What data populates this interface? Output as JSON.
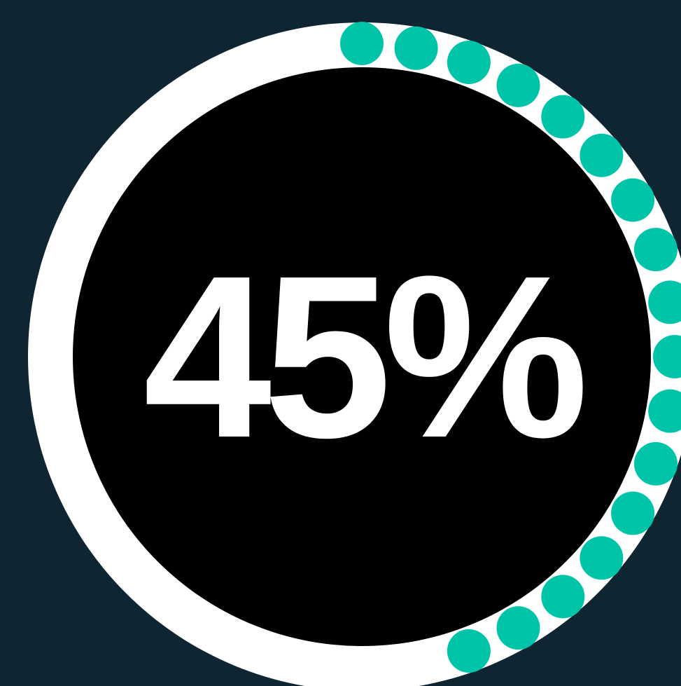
{
  "progress": {
    "label": "45%",
    "value": 0.45
  },
  "colors": {
    "background": "#102532",
    "ring": "#ffffff",
    "dial": "#000000",
    "dots": "#00c4a7",
    "text": "#ffffff"
  }
}
